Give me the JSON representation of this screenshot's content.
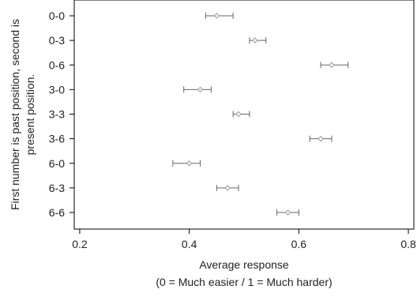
{
  "chart_data": {
    "type": "scatter",
    "orientation": "horizontal",
    "categories": [
      "0-0",
      "0-3",
      "0-6",
      "3-0",
      "3-3",
      "3-6",
      "6-0",
      "6-3",
      "6-6"
    ],
    "series": [
      {
        "values": [
          0.45,
          0.52,
          0.66,
          0.42,
          0.49,
          0.64,
          0.4,
          0.47,
          0.58
        ],
        "error_low": [
          0.43,
          0.51,
          0.64,
          0.39,
          0.48,
          0.62,
          0.37,
          0.45,
          0.56
        ],
        "error_high": [
          0.48,
          0.54,
          0.69,
          0.44,
          0.51,
          0.66,
          0.42,
          0.49,
          0.6
        ]
      }
    ],
    "xlabel": "Average response",
    "xlabel_sub": "(0 = Much easier / 1 = Much harder)",
    "ylabel_line1": "First number is past position, second is",
    "ylabel_line2": "present position.",
    "xticks": [
      0.2,
      0.4,
      0.6,
      0.8
    ],
    "xtick_labels": [
      "0.2",
      "0.4",
      "0.6",
      "0.8"
    ],
    "xlim": [
      0.19,
      0.81
    ],
    "grid": false,
    "legend": "none",
    "colors": {
      "marker": "#999999",
      "errorbar": "#666666",
      "axis": "#000000"
    }
  }
}
